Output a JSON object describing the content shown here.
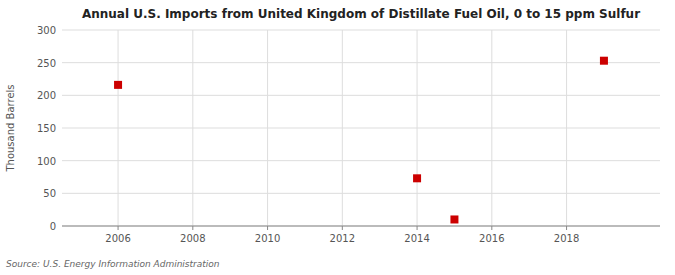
{
  "chart_data": {
    "type": "scatter",
    "title": "Annual U.S. Imports from United Kingdom of Distillate Fuel Oil, 0 to 15 ppm Sulfur",
    "ylabel": "Thousand Barrels",
    "x": [
      2006,
      2014,
      2015,
      2019
    ],
    "values": [
      216,
      73,
      10,
      253
    ],
    "color": "#cc0000",
    "marker": "square",
    "xlim": [
      2004.5,
      2020.5
    ],
    "ylim": [
      0,
      300
    ],
    "xticks": [
      2006,
      2008,
      2010,
      2012,
      2014,
      2016,
      2018
    ],
    "yticks": [
      0,
      50,
      100,
      150,
      200,
      250,
      300
    ],
    "grid": true,
    "annotations": [
      "Source: U.S. Energy Information Administration"
    ]
  }
}
